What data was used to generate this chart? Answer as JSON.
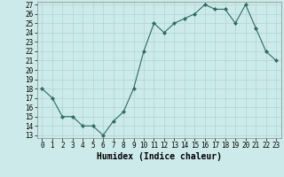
{
  "x": [
    0,
    1,
    2,
    3,
    4,
    5,
    6,
    7,
    8,
    9,
    10,
    11,
    12,
    13,
    14,
    15,
    16,
    17,
    18,
    19,
    20,
    21,
    22,
    23
  ],
  "y": [
    18,
    17,
    15,
    15,
    14,
    14,
    13,
    14.5,
    15.5,
    18,
    22,
    25,
    24,
    25,
    25.5,
    26,
    27,
    26.5,
    26.5,
    25,
    27,
    24.5,
    22,
    21
  ],
  "xlabel": "Humidex (Indice chaleur)",
  "ylim_min": 13,
  "ylim_max": 27,
  "xlim_min": -0.5,
  "xlim_max": 23.5,
  "yticks": [
    13,
    14,
    15,
    16,
    17,
    18,
    19,
    20,
    21,
    22,
    23,
    24,
    25,
    26,
    27
  ],
  "xticks": [
    0,
    1,
    2,
    3,
    4,
    5,
    6,
    7,
    8,
    9,
    10,
    11,
    12,
    13,
    14,
    15,
    16,
    17,
    18,
    19,
    20,
    21,
    22,
    23
  ],
  "line_color": "#2e6b5e",
  "marker_color": "#2e6b5e",
  "bg_color": "#cceaea",
  "grid_color": "#b0d4d4",
  "xlabel_fontsize": 7,
  "tick_fontsize": 5.5,
  "linewidth": 0.8,
  "markersize": 2.0
}
